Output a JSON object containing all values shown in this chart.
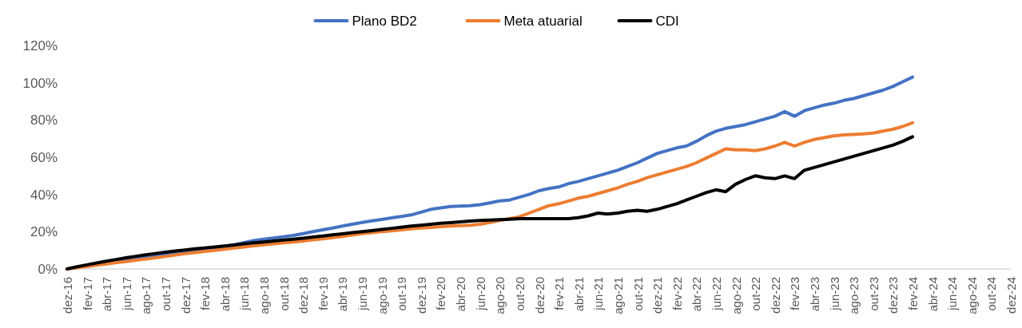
{
  "chart_data": {
    "type": "line",
    "legend": "top",
    "grid": false,
    "line_style": "solid",
    "marker": "none",
    "categories": [
      "dez-16",
      null,
      "fev-17",
      null,
      "abr-17",
      null,
      "jun-17",
      null,
      "ago-17",
      null,
      "out-17",
      null,
      "dez-17",
      null,
      "fev-18",
      null,
      "abr-18",
      null,
      "jun-18",
      null,
      "ago-18",
      null,
      "out-18",
      null,
      "dez-18",
      null,
      "fev-19",
      null,
      "abr-19",
      null,
      "jun-19",
      null,
      "ago-19",
      null,
      "out-19",
      null,
      "dez-19",
      null,
      "fev-20",
      null,
      "abr-20",
      null,
      "jun-20",
      null,
      "ago-20",
      null,
      "out-20",
      null,
      "dez-20",
      null,
      "fev-21",
      null,
      "abr-21",
      null,
      "jun-21",
      null,
      "ago-21",
      null,
      "out-21",
      null,
      "dez-21",
      null,
      "fev-22",
      null,
      "abr-22",
      null,
      "jun-22",
      null,
      "ago-22",
      null,
      "out-22",
      null,
      "dez-22",
      null,
      "fev-23",
      null,
      "abr-23",
      null,
      "jun-23",
      null,
      "ago-23",
      null,
      "out-23",
      null,
      "dez-23",
      null,
      "fev-24",
      null,
      "abr-24",
      null,
      "jun-24",
      null,
      "ago-24",
      null,
      "out-24",
      null,
      "dez-24"
    ],
    "ylim": [
      0,
      120
    ],
    "yticks": [
      {
        "value": 0,
        "label": "0%"
      },
      {
        "value": 20,
        "label": "20%"
      },
      {
        "value": 40,
        "label": "40%"
      },
      {
        "value": 60,
        "label": "60%"
      },
      {
        "value": 80,
        "label": "80%"
      },
      {
        "value": 100,
        "label": "100%"
      },
      {
        "value": 120,
        "label": "120%"
      }
    ],
    "series": [
      {
        "name": "Plano BD2",
        "color": "#4472c4",
        "values": [
          null,
          null,
          null,
          null,
          null,
          4.1,
          4.9,
          5.7,
          6.5,
          7.2,
          7.9,
          8.6,
          9.3,
          10,
          10.6,
          11.2,
          12,
          13,
          14.2,
          15.2,
          16,
          16.6,
          17.3,
          18,
          19,
          20,
          21,
          22,
          23,
          24,
          25,
          25.8,
          26.6,
          27.4,
          28.2,
          29,
          30.5,
          32,
          32.8,
          33.5,
          33.8,
          34,
          34.5,
          35.5,
          36.5,
          37,
          38.5,
          40,
          42,
          43.2,
          44,
          45.8,
          47,
          48.5,
          50,
          51.5,
          53,
          55,
          57,
          59.5,
          62,
          63.5,
          65,
          66,
          68.5,
          71.5,
          74,
          75.5,
          76.5,
          77.5,
          79,
          80.5,
          82,
          84.5,
          82,
          85,
          86.5,
          88,
          89,
          90.5,
          91.5,
          93,
          94.5,
          96,
          98,
          100.5,
          103,
          null,
          null,
          null,
          null,
          null,
          null,
          null,
          null,
          null,
          null
        ]
      },
      {
        "name": "Meta atuarial",
        "color": "#ed7d31",
        "values": [
          0,
          0.6,
          1.3,
          2,
          2.7,
          3.4,
          4,
          4.7,
          5.3,
          6,
          6.7,
          7.5,
          8.2,
          8.8,
          9.4,
          10,
          10.6,
          11.2,
          11.8,
          12.4,
          13,
          13.5,
          14,
          14.5,
          15,
          15.6,
          16.2,
          16.8,
          17.5,
          18.2,
          19,
          19.5,
          20,
          20.5,
          21,
          21.5,
          22,
          22.3,
          22.7,
          23,
          23.3,
          23.5,
          24,
          25,
          26,
          27,
          28,
          30,
          32,
          34,
          35,
          36.5,
          38,
          39,
          40.5,
          42,
          43.5,
          45.5,
          47,
          49,
          50.5,
          52,
          53.5,
          55,
          57,
          59.5,
          62,
          64.5,
          64,
          64,
          63.5,
          64.5,
          66,
          68,
          66,
          68,
          69.5,
          70.5,
          71.5,
          72,
          72.2,
          72.5,
          73,
          74,
          75,
          76.5,
          78.5,
          null,
          null,
          null,
          null,
          null,
          null,
          null,
          null,
          null,
          null
        ]
      },
      {
        "name": "CDI",
        "color": "#000000",
        "values": [
          0,
          1.2,
          2.2,
          3.2,
          4.2,
          5.1,
          6,
          6.8,
          7.6,
          8.3,
          9,
          9.6,
          10.2,
          10.8,
          11.3,
          11.8,
          12.3,
          12.9,
          13.5,
          14,
          14.5,
          15,
          15.5,
          16,
          16.5,
          17.1,
          17.7,
          18.3,
          18.9,
          19.5,
          20,
          20.6,
          21.2,
          21.8,
          22.4,
          23,
          23.5,
          24,
          24.5,
          24.9,
          25.3,
          25.7,
          26,
          26.3,
          26.5,
          26.7,
          27,
          27,
          27,
          27,
          27,
          27,
          27.5,
          28.5,
          30,
          29.5,
          30,
          31,
          31.5,
          31,
          32,
          33.5,
          35,
          37,
          39,
          41,
          42.5,
          41.5,
          45.5,
          48,
          50,
          49,
          48.5,
          50,
          48.5,
          53,
          54.5,
          56,
          57.5,
          59,
          60.5,
          62,
          63.5,
          65,
          66.5,
          68.5,
          71,
          null,
          null,
          null,
          null,
          null,
          null,
          null,
          null,
          null,
          null
        ]
      }
    ]
  }
}
